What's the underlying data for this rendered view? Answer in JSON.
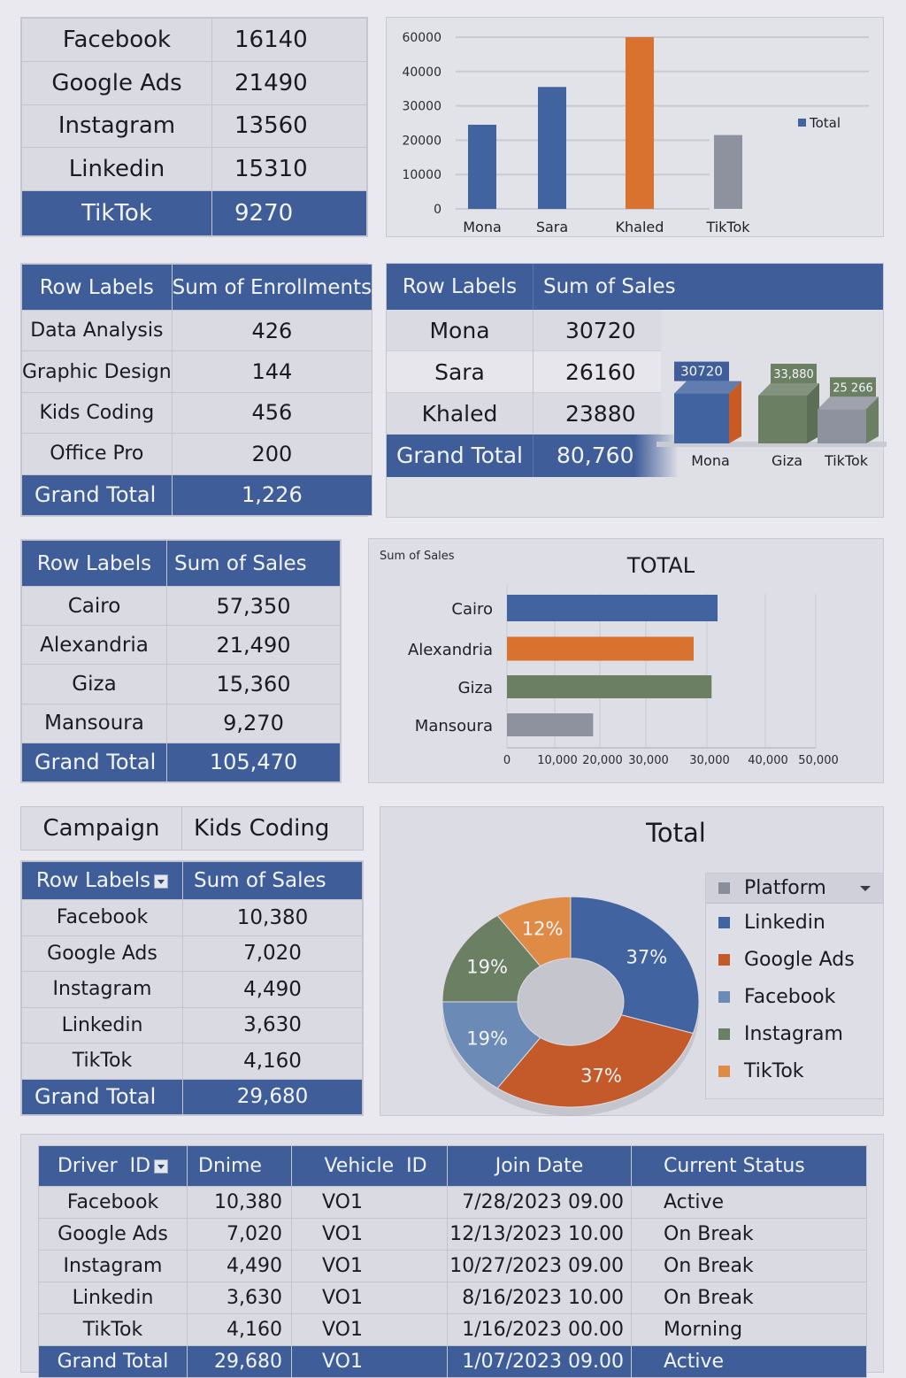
{
  "colors": {
    "header_blue": "#3f5e99",
    "blue": "#4163a0",
    "orange": "#d9712f",
    "dark_orange": "#c45a2a",
    "green": "#6b7f63",
    "gray": "#8e929e",
    "light_blue": "#6b8ab5",
    "light_orange": "#e08b45"
  },
  "platform_table": {
    "rows": [
      {
        "label": "Facebook",
        "value": "16140"
      },
      {
        "label": "Google Ads",
        "value": "21490"
      },
      {
        "label": "Instagram",
        "value": "13560"
      },
      {
        "label": "Linkedin",
        "value": "15310"
      }
    ],
    "highlight": {
      "label": "TikTok",
      "value": "9270"
    }
  },
  "enrollments_table": {
    "headers": [
      "Row Labels",
      "Sum of Enrollments"
    ],
    "rows": [
      {
        "label": "Data Analysis",
        "value": "426"
      },
      {
        "label": "Graphic Design",
        "value": "144"
      },
      {
        "label": "Kids Coding",
        "value": "456"
      },
      {
        "label": "Office Pro",
        "value": "200"
      }
    ],
    "total": {
      "label": "Grand Total",
      "value": "1,226"
    }
  },
  "sales_person_table": {
    "headers": [
      "Row Labels",
      "Sum of Sales"
    ],
    "rows": [
      {
        "label": "Mona",
        "value": "30720"
      },
      {
        "label": "Sara",
        "value": "26160"
      },
      {
        "label": "Khaled",
        "value": "23880"
      }
    ],
    "total": {
      "label": "Grand Total",
      "value": "80,760"
    }
  },
  "city_table": {
    "headers": [
      "Row Labels",
      "Sum of Sales"
    ],
    "rows": [
      {
        "label": "Cairo",
        "value": "57,350"
      },
      {
        "label": "Alexandria",
        "value": "21,490"
      },
      {
        "label": "Giza",
        "value": "15,360"
      },
      {
        "label": "Mansoura",
        "value": "9,270"
      }
    ],
    "total": {
      "label": "Grand Total",
      "value": "105,470"
    }
  },
  "campaign_filter": {
    "label": "Campaign",
    "value": "Kids Coding"
  },
  "campaign_table": {
    "headers": [
      "Row Labels",
      "Sum of Sales"
    ],
    "rows": [
      {
        "label": "Facebook",
        "value": "10,380"
      },
      {
        "label": "Google Ads",
        "value": "7,020"
      },
      {
        "label": "Instagram",
        "value": "4,490"
      },
      {
        "label": "Linkedin",
        "value": "3,630"
      },
      {
        "label": "TikTok",
        "value": "4,160"
      }
    ],
    "total": {
      "label": "Grand Total",
      "value": "29,680"
    }
  },
  "driver_table": {
    "headers": [
      "Driver  ID",
      "Dnime",
      "Vehicle  ID",
      "Join Date",
      "Current Status"
    ],
    "rows": [
      [
        "Facebook",
        "10,380",
        "VO1",
        "7/28/2023 09.00",
        "Active"
      ],
      [
        "Google Ads",
        "7,020",
        "VO1",
        "12/13/2023 10.00",
        "On Break"
      ],
      [
        "Instagram",
        "4,490",
        "VO1",
        "10/27/2023 09.00",
        "On Break"
      ],
      [
        "Linkedin",
        "3,630",
        "VO1",
        "8/16/2023 10.00",
        "On Break"
      ],
      [
        "TikTok",
        "4,160",
        "VO1",
        "1/16/2023 00.00",
        "Morning"
      ]
    ],
    "total": [
      "Grand Total",
      "29,680",
      "VO1",
      "1/07/2023 09.00",
      "Active"
    ]
  },
  "chart_data": [
    {
      "id": "top_bar",
      "type": "bar",
      "title": "",
      "categories": [
        "Mona",
        "Sara",
        "Khaled",
        "TikTok"
      ],
      "values": [
        24500,
        35500,
        60000,
        21500
      ],
      "bar_colors": [
        "#4163a0",
        "#4163a0",
        "#d9712f",
        "#8e929e"
      ],
      "yticks": [
        "60000",
        "40000",
        "30000",
        "20000",
        "10000",
        "0"
      ],
      "ytick_values": [
        60000,
        40000,
        30000,
        20000,
        10000,
        0
      ],
      "legend": [
        "Total"
      ],
      "legend_position": "right",
      "grid": true
    },
    {
      "id": "bar3d",
      "type": "bar",
      "categories": [
        "Mona",
        "Giza",
        "TikTok"
      ],
      "values": [
        30720,
        33880,
        25266
      ],
      "data_labels": [
        "30720",
        "33,880",
        "25 266"
      ],
      "bar_colors": [
        "#4163a0",
        "#6b7f63",
        "#8e929e"
      ],
      "legend": []
    },
    {
      "id": "hbar",
      "type": "bar",
      "orientation": "horizontal",
      "title": "TOTAL",
      "subtitle": "Sum of Sales",
      "categories": [
        "Cairo",
        "Alexandria",
        "Giza",
        "Mansoura"
      ],
      "values": [
        36000,
        34000,
        35500,
        18500
      ],
      "bar_colors": [
        "#4163a0",
        "#d9712f",
        "#6b7f63",
        "#8e929e"
      ],
      "xticks": [
        "0",
        "10,000",
        "20,000",
        "30,000",
        "30,000",
        "40,000",
        "50,000"
      ],
      "grid": true
    },
    {
      "id": "donut",
      "type": "pie",
      "title": "Total",
      "categories": [
        "Linkedin",
        "Google Ads",
        "Facebook",
        "Instagram",
        "TikTok"
      ],
      "values": [
        37,
        37,
        19,
        19,
        12
      ],
      "labels": [
        "37%",
        "37%",
        "19%",
        "19%",
        "12%"
      ],
      "slice_colors": [
        "#4163a0",
        "#c45a2a",
        "#6b8ab5",
        "#6b7f63",
        "#e08b45"
      ],
      "legend_title": "Platform",
      "legend_position": "right"
    }
  ]
}
